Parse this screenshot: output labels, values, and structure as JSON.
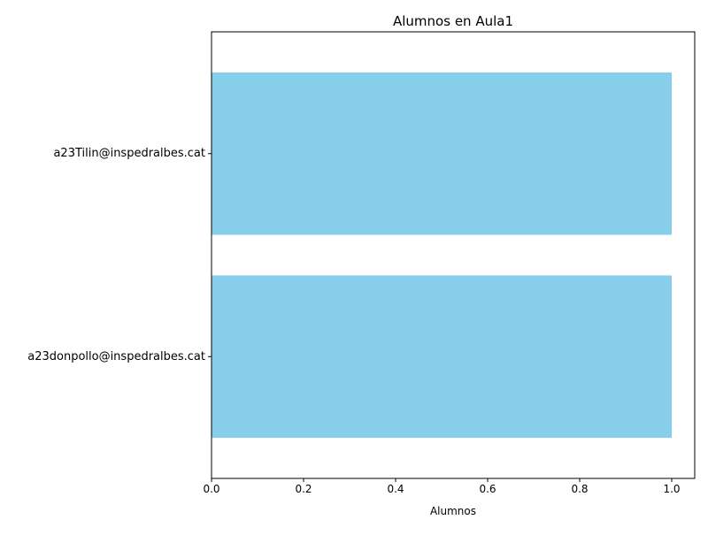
{
  "chart_data": {
    "type": "bar",
    "orientation": "horizontal",
    "title": "Alumnos en Aula1",
    "xlabel": "Alumnos",
    "ylabel": "",
    "categories": [
      "a23donpollo@inspedralbes.cat",
      "a23Tilin@inspedralbes.cat"
    ],
    "values": [
      1,
      1
    ],
    "xlim": [
      0,
      1.05
    ],
    "xticks": [
      "0.0",
      "0.2",
      "0.4",
      "0.6",
      "0.8",
      "1.0"
    ],
    "bar_color": "#87ceeb",
    "grid": false,
    "legend": false
  }
}
